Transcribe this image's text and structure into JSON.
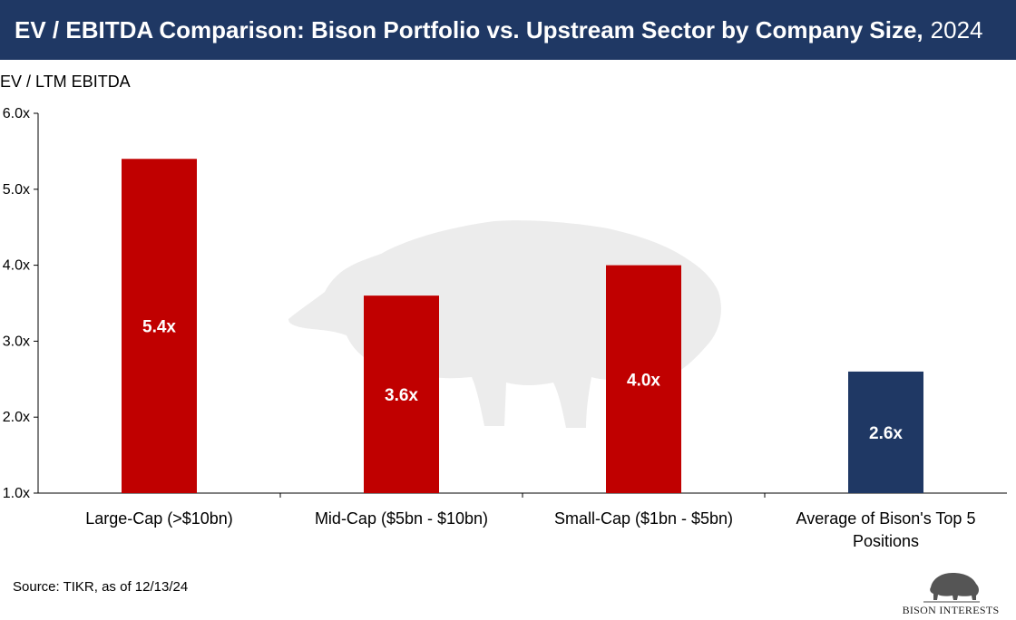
{
  "header": {
    "title": "EV / EBITDA Comparison: Bison Portfolio vs. Upstream Sector by Company Size,",
    "year": "2024"
  },
  "chart_data": {
    "type": "bar",
    "title": "EV / EBITDA Comparison: Bison Portfolio vs. Upstream Sector by Company Size, 2024",
    "ylabel": "EV / LTM EBITDA",
    "xlabel": "",
    "ylim": [
      1.0,
      6.0
    ],
    "yticks": [
      "1.0x",
      "2.0x",
      "3.0x",
      "4.0x",
      "5.0x",
      "6.0x"
    ],
    "categories": [
      "Large-Cap (>$10bn)",
      "Mid-Cap ($5bn - $10bn)",
      "Small-Cap ($1bn - $5bn)",
      "Average of Bison's Top 5 Positions"
    ],
    "values": [
      5.4,
      3.6,
      4.0,
      2.6
    ],
    "data_labels": [
      "5.4x",
      "3.6x",
      "4.0x",
      "2.6x"
    ],
    "bar_colors": [
      "#c00000",
      "#c00000",
      "#c00000",
      "#1f3864"
    ],
    "grid": false,
    "legend": "none"
  },
  "footer": {
    "source": "Source: TIKR, as of 12/13/24"
  },
  "logo": {
    "text": "BISON INTERESTS",
    "icon": "bison-icon"
  }
}
